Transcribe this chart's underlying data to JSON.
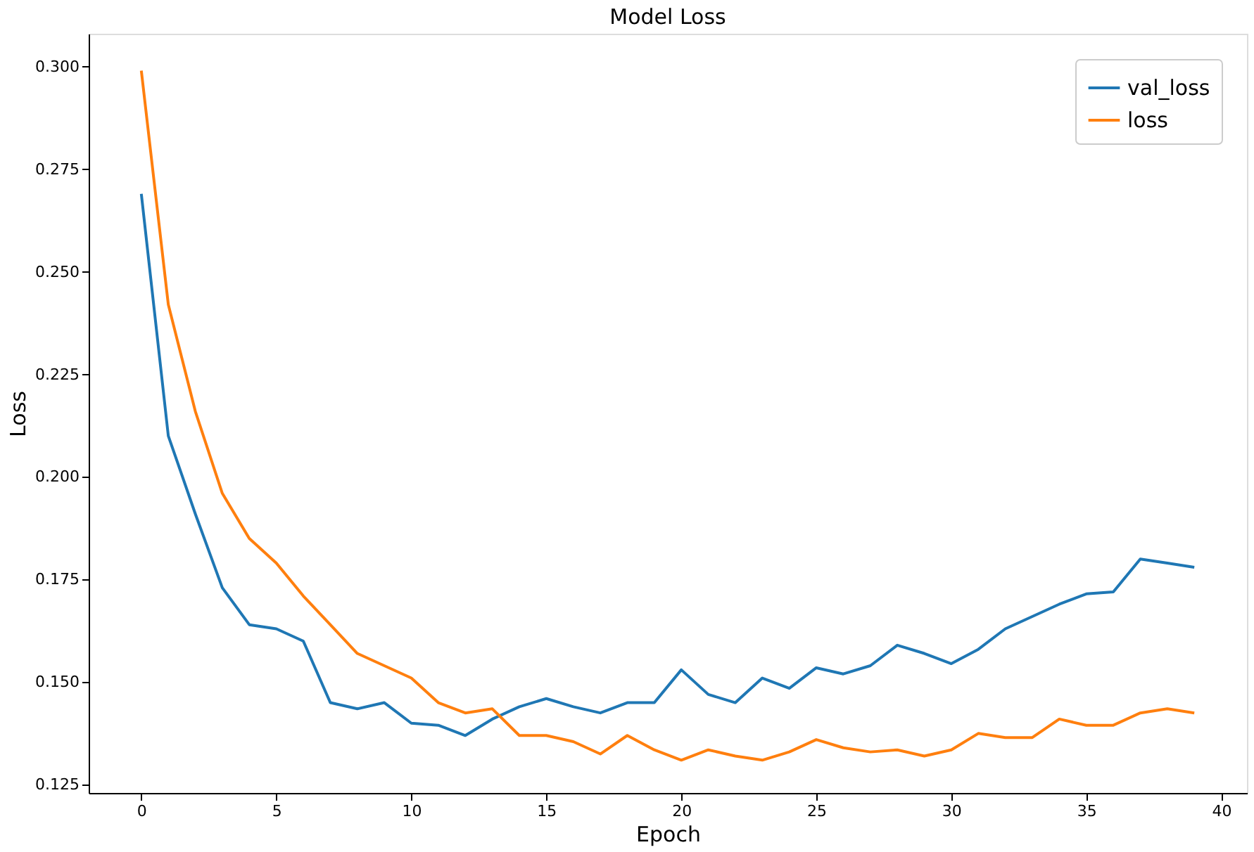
{
  "chart_data": {
    "type": "line",
    "title": "Model Loss",
    "xlabel": "Epoch",
    "ylabel": "Loss",
    "x": [
      0,
      1,
      2,
      3,
      4,
      5,
      6,
      7,
      8,
      9,
      10,
      11,
      12,
      13,
      14,
      15,
      16,
      17,
      18,
      19,
      20,
      21,
      22,
      23,
      24,
      25,
      26,
      27,
      28,
      29,
      30,
      31,
      32,
      33,
      34,
      35,
      36,
      37,
      38,
      39
    ],
    "series": [
      {
        "name": "val_loss",
        "color": "#1f77b4",
        "values": [
          0.269,
          0.21,
          0.191,
          0.173,
          0.164,
          0.163,
          0.16,
          0.145,
          0.1435,
          0.145,
          0.14,
          0.1395,
          0.137,
          0.141,
          0.144,
          0.146,
          0.144,
          0.1425,
          0.145,
          0.145,
          0.153,
          0.147,
          0.145,
          0.151,
          0.1485,
          0.1535,
          0.152,
          0.154,
          0.159,
          0.157,
          0.1545,
          0.158,
          0.163,
          0.166,
          0.169,
          0.1715,
          0.172,
          0.18,
          0.179,
          0.178
        ]
      },
      {
        "name": "loss",
        "color": "#ff7f0e",
        "values": [
          0.299,
          0.242,
          0.216,
          0.196,
          0.185,
          0.179,
          0.171,
          0.164,
          0.157,
          0.154,
          0.151,
          0.145,
          0.1425,
          0.1435,
          0.137,
          0.137,
          0.1355,
          0.1325,
          0.137,
          0.1335,
          0.131,
          0.1335,
          0.132,
          0.131,
          0.133,
          0.136,
          0.134,
          0.133,
          0.1335,
          0.132,
          0.1335,
          0.1375,
          0.1365,
          0.1365,
          0.141,
          0.1395,
          0.1395,
          0.1425,
          0.1435,
          0.1425
        ]
      }
    ],
    "xlim": [
      -1.95,
      40.95
    ],
    "xticks": [
      0,
      5,
      10,
      15,
      20,
      25,
      30,
      35,
      40
    ],
    "ylim": [
      0.123,
      0.308
    ],
    "yticks": [
      0.125,
      {
        "value": 0.15,
        "label": "0.150"
      },
      0.175,
      {
        "value": 0.2,
        "label": "0.200"
      },
      0.225,
      {
        "value": 0.25,
        "label": "0.250"
      },
      0.275,
      {
        "value": 0.3,
        "label": "0.300"
      }
    ],
    "grid": false,
    "legend": "top right",
    "marker": "none",
    "line_style": "solid"
  }
}
